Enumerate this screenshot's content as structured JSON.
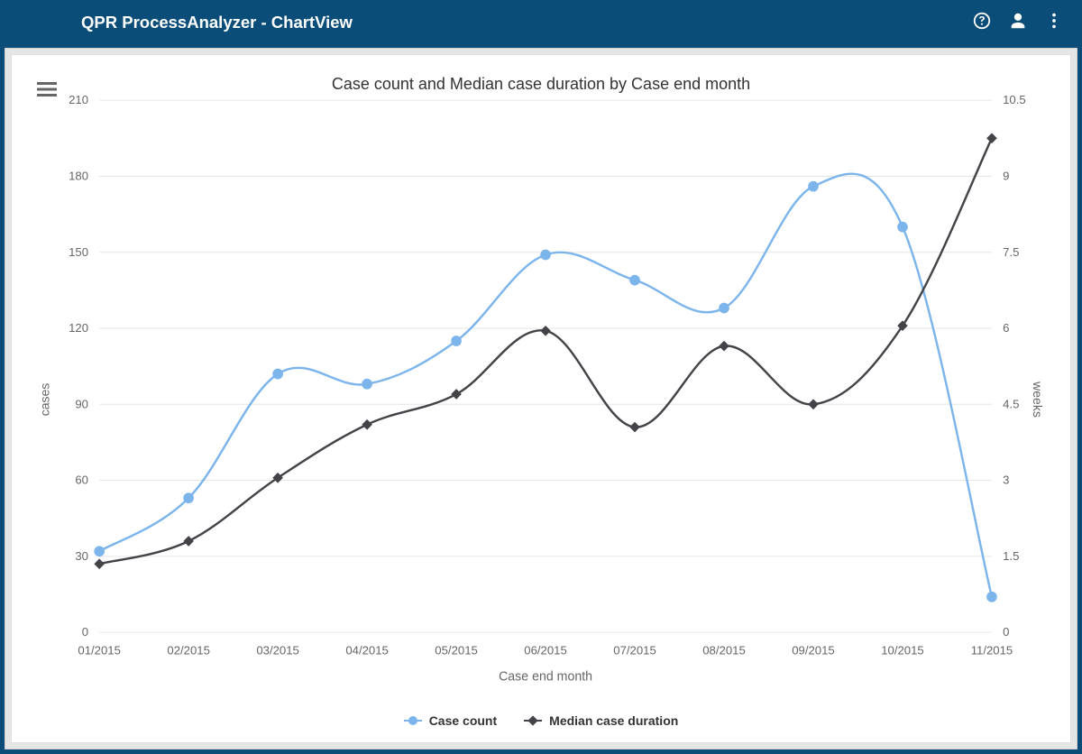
{
  "header": {
    "title": "QPR ProcessAnalyzer - ChartView"
  },
  "chart": {
    "type": "line",
    "title": "Case count and Median case duration by Case end month",
    "x_axis": {
      "title": "Case end month",
      "categories": [
        "01/2015",
        "02/2015",
        "03/2015",
        "04/2015",
        "05/2015",
        "06/2015",
        "07/2015",
        "08/2015",
        "09/2015",
        "10/2015",
        "11/2015"
      ]
    },
    "y_axis_left": {
      "title": "cases",
      "min": 0,
      "max": 210,
      "tick_step": 30,
      "ticks": [
        0,
        30,
        60,
        90,
        120,
        150,
        180,
        210
      ]
    },
    "y_axis_right": {
      "title": "weeks",
      "min": 0,
      "max": 10.5,
      "tick_step": 1.5,
      "ticks": [
        0,
        1.5,
        3,
        4.5,
        6,
        7.5,
        9,
        10.5
      ]
    },
    "series": [
      {
        "name": "Case count",
        "axis": "left",
        "color": "#7cb5ec",
        "marker": "circle",
        "marker_fill": "#7cb5ec",
        "marker_stroke": "#7cb5ec",
        "marker_size": 5,
        "line_width": 2.4,
        "data": [
          32,
          53,
          102,
          98,
          115,
          149,
          139,
          128,
          176,
          160,
          14
        ]
      },
      {
        "name": "Median case duration",
        "axis": "right",
        "color": "#434348",
        "marker": "diamond",
        "marker_fill": "#434348",
        "marker_stroke": "#434348",
        "marker_size": 5,
        "line_width": 2.4,
        "data": [
          1.35,
          1.8,
          3.05,
          4.1,
          4.7,
          5.95,
          4.05,
          5.65,
          4.5,
          6.05,
          9.75
        ]
      }
    ],
    "background_color": "#ffffff",
    "grid_color": "#e6e6e6",
    "axis_text_color": "#666666",
    "title_color": "#333333",
    "title_fontsize": 18,
    "axis_fontsize": 13
  }
}
